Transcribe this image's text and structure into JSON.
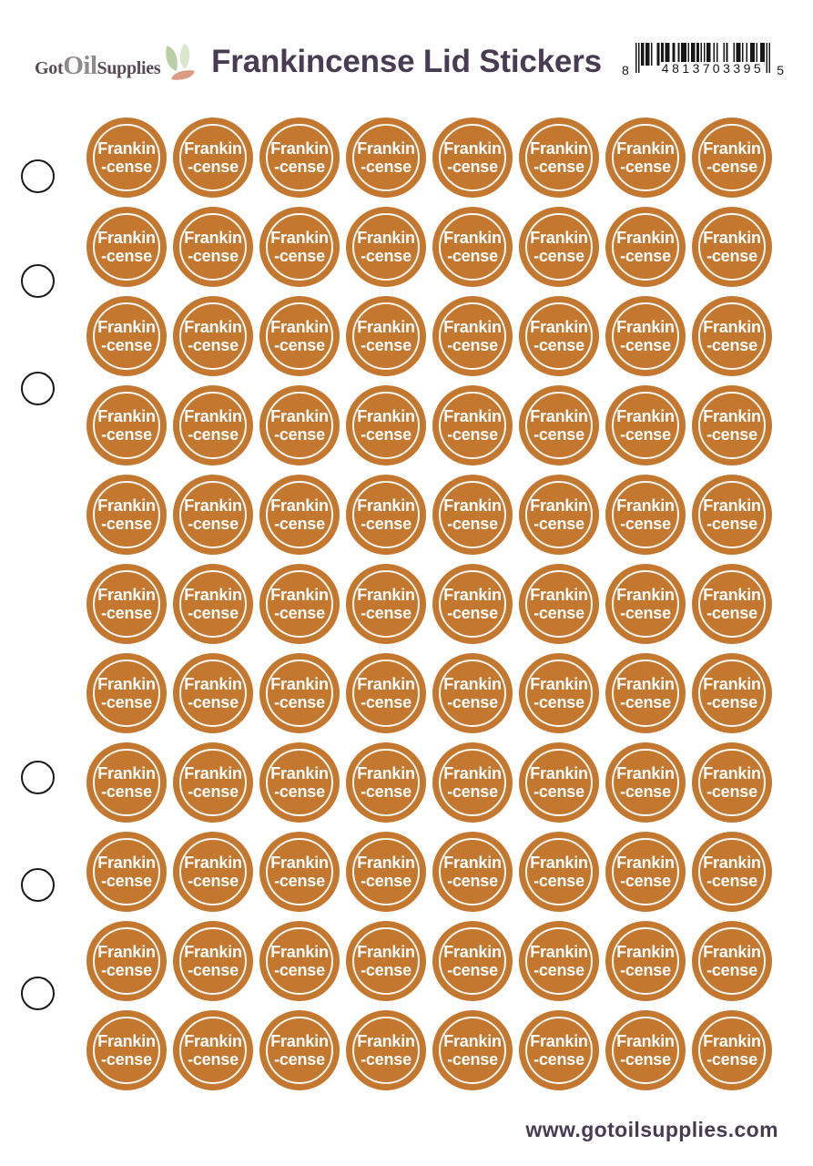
{
  "brand": {
    "logo_got": "Got",
    "logo_oil": "Oil",
    "logo_supplies": "Supplies",
    "leaf_icon": "leaves-icon"
  },
  "header": {
    "title": "Frankincense Lid Stickers"
  },
  "barcode": {
    "type": "UPC-A",
    "system_digit": "8",
    "left_group": "48137",
    "right_group": "03395",
    "check_digit": "5",
    "full_number": "8 48137 03395 5",
    "segments": [
      "101",
      "0110111",
      "0100011",
      "0110111",
      "0011001",
      "0111101",
      "0111011",
      "01010",
      "1110010",
      "1000010",
      "1000010",
      "1110100",
      "1001110",
      "1001110",
      "101"
    ]
  },
  "sticker_sheet": {
    "rows": 11,
    "columns": 8,
    "total_stickers": 88,
    "sticker_line1": "Frankin",
    "sticker_line2": "-cense",
    "punch_holes": 6
  },
  "footer": {
    "website": "www.gotoilsupplies.com"
  },
  "colors": {
    "sticker_orange": "#C4772F",
    "brand_purple": "#594A56",
    "brand_purple_dark": "#493B52",
    "logo_gray": "#8F8B8E"
  }
}
